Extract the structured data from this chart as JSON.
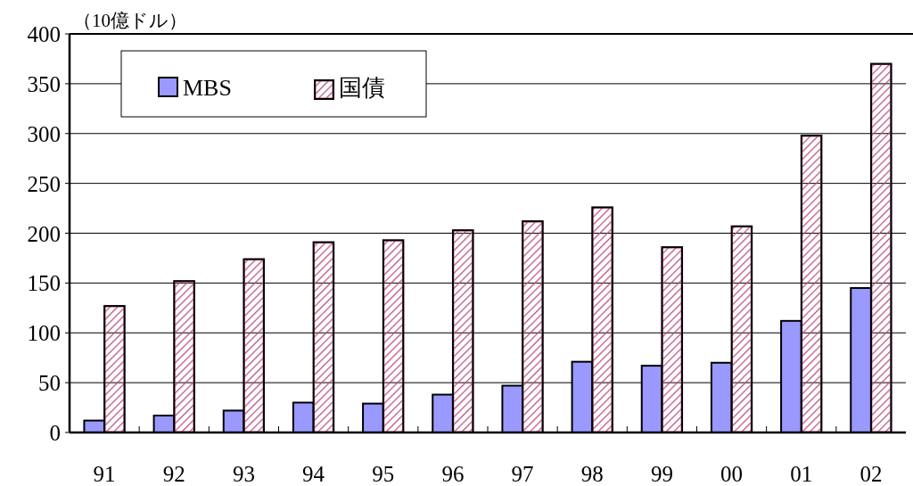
{
  "chart_data": {
    "type": "bar",
    "ylabel": "（10億ドル）",
    "categories": [
      "91",
      "92",
      "93",
      "94",
      "95",
      "96",
      "97",
      "98",
      "99",
      "00",
      "01",
      "02"
    ],
    "series": [
      {
        "name": "MBS",
        "color": "#9999ff",
        "values": [
          12,
          17,
          22,
          30,
          29,
          38,
          47,
          71,
          67,
          70,
          112,
          145
        ]
      },
      {
        "name": "国債",
        "color": "#b8507e",
        "values": [
          127,
          152,
          174,
          191,
          193,
          203,
          212,
          226,
          186,
          207,
          298,
          370
        ]
      }
    ],
    "ylim": [
      0,
      400
    ],
    "yticks": [
      0,
      50,
      100,
      150,
      200,
      250,
      300,
      350,
      400
    ],
    "grid": "y",
    "legend": "top left"
  }
}
